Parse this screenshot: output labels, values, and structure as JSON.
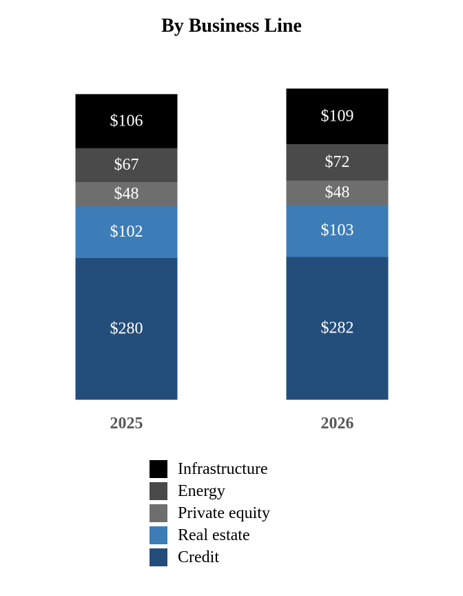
{
  "chart_data": {
    "type": "bar",
    "stacked": true,
    "title": "By Business Line",
    "categories": [
      "2025",
      "2026"
    ],
    "series": [
      {
        "name": "Credit",
        "values": [
          280,
          282
        ],
        "labels": [
          "$280",
          "$282"
        ],
        "color": "#234e7b"
      },
      {
        "name": "Real estate",
        "values": [
          102,
          103
        ],
        "labels": [
          "$102",
          "$103"
        ],
        "color": "#3d7db7"
      },
      {
        "name": "Private equity",
        "values": [
          48,
          48
        ],
        "labels": [
          "$48",
          "$48"
        ],
        "color": "#6e6e6e"
      },
      {
        "name": "Energy",
        "values": [
          67,
          72
        ],
        "labels": [
          "$67",
          "$72"
        ],
        "color": "#4a4a4a"
      },
      {
        "name": "Infrastructure",
        "values": [
          106,
          109
        ],
        "labels": [
          "$106",
          "$109"
        ],
        "color": "#000000"
      }
    ],
    "legend": {
      "position": "bottom",
      "order": [
        "Infrastructure",
        "Energy",
        "Private equity",
        "Real estate",
        "Credit"
      ]
    },
    "y_axis_visible": false,
    "grid": false
  }
}
